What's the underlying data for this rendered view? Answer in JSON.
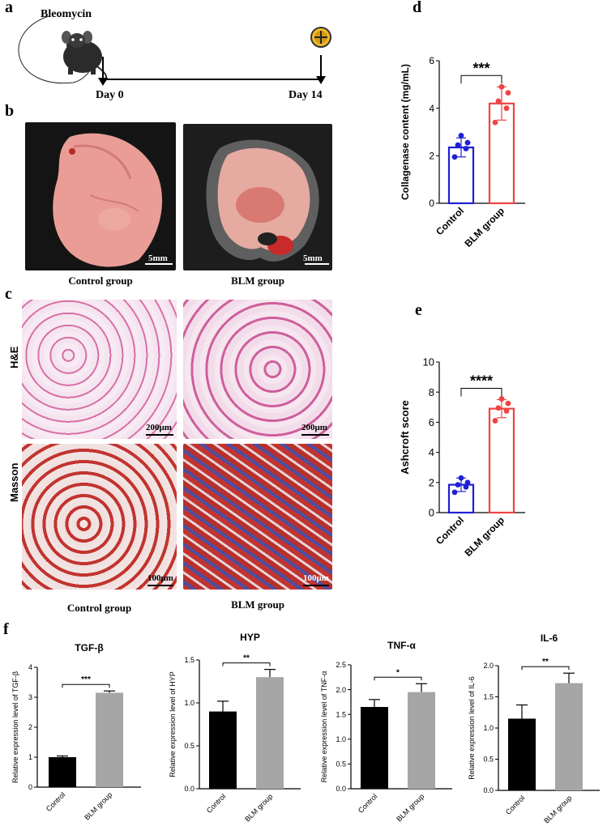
{
  "panels": {
    "a": {
      "letter": "a",
      "drug": "Bleomycin",
      "day_start": "Day 0",
      "day_end": "Day 14"
    },
    "b": {
      "letter": "b",
      "captions": [
        "Control group",
        "BLM group"
      ],
      "scale": "5mm"
    },
    "c": {
      "letter": "c",
      "rows": [
        "H&E",
        "Masson"
      ],
      "captions": [
        "Control group",
        "BLM group"
      ],
      "scale_he": "200μm",
      "scale_masson": "100μm"
    },
    "d": {
      "letter": "d"
    },
    "e": {
      "letter": "e"
    },
    "f": {
      "letter": "f"
    }
  },
  "colors": {
    "control": "#1f1fd6",
    "blm": "#ee4444",
    "black_bar": "#000000",
    "grey_bar": "#a6a6a6",
    "lung_pink": "#e89a92",
    "he_pink": "#d96fa8",
    "masson_red": "#c2342f",
    "masson_blue": "#4a4fa3"
  },
  "chart_data": [
    {
      "id": "d",
      "type": "bar",
      "categories": [
        "Control",
        "BLM group"
      ],
      "values": [
        2.35,
        4.2
      ],
      "errors": [
        0.4,
        0.7
      ],
      "points": [
        [
          1.95,
          2.3,
          2.45,
          2.55,
          2.85
        ],
        [
          3.4,
          4.0,
          4.3,
          4.65,
          4.9
        ]
      ],
      "ylabel": "Collagenase content (mg/mL)",
      "ylim": [
        0,
        6
      ],
      "yticks": [
        0,
        2,
        4,
        6
      ],
      "significance": "***"
    },
    {
      "id": "e",
      "type": "bar",
      "categories": [
        "Control",
        "BLM group"
      ],
      "values": [
        1.85,
        6.9
      ],
      "errors": [
        0.45,
        0.6
      ],
      "points": [
        [
          1.35,
          1.7,
          1.85,
          2.0,
          2.3
        ],
        [
          6.1,
          6.75,
          6.95,
          7.25,
          7.55
        ]
      ],
      "ylabel": "Ashcroft score",
      "ylim": [
        0,
        10
      ],
      "yticks": [
        0,
        2,
        4,
        6,
        8,
        10
      ],
      "significance": "****"
    },
    {
      "id": "f1",
      "type": "bar",
      "title": "TGF-β",
      "categories": [
        "Control",
        "BLM group"
      ],
      "values": [
        1.0,
        3.15
      ],
      "errors": [
        0.04,
        0.06
      ],
      "ylabel": "Relative expression level of TGF-β",
      "ylim": [
        0,
        4
      ],
      "yticks": [
        "0",
        "1",
        "2",
        "3",
        "4"
      ],
      "significance": "***"
    },
    {
      "id": "f2",
      "type": "bar",
      "title": "HYP",
      "categories": [
        "Control",
        "BLM group"
      ],
      "values": [
        0.9,
        1.3
      ],
      "errors": [
        0.12,
        0.09
      ],
      "ylabel": "Relative expression level of HYP",
      "ylim": [
        0,
        1.5
      ],
      "yticks": [
        "0.0",
        "0.5",
        "1.0",
        "1.5"
      ],
      "significance": "**"
    },
    {
      "id": "f3",
      "type": "bar",
      "title": "TNF-α",
      "categories": [
        "Control",
        "BLM group"
      ],
      "values": [
        1.65,
        1.95
      ],
      "errors": [
        0.15,
        0.17
      ],
      "ylabel": "Relative expression level of TNF-α",
      "ylim": [
        0,
        2.5
      ],
      "yticks": [
        "0.0",
        "0.5",
        "1.0",
        "1.5",
        "2.0",
        "2.5"
      ],
      "significance": "*"
    },
    {
      "id": "f4",
      "type": "bar",
      "title": "IL-6",
      "categories": [
        "Control",
        "BLM group"
      ],
      "values": [
        1.15,
        1.72
      ],
      "errors": [
        0.22,
        0.16
      ],
      "ylabel": "Relative expression level of IL-6",
      "ylim": [
        0,
        2.0
      ],
      "yticks": [
        "0.0",
        "0.5",
        "1.0",
        "1.5",
        "2.0"
      ],
      "significance": "**"
    }
  ]
}
